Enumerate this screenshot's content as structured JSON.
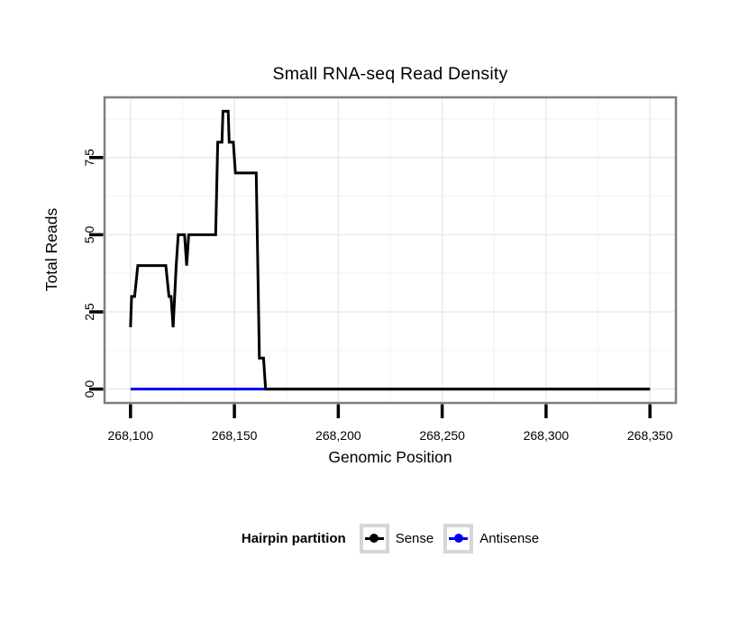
{
  "window": {
    "background": "#ffffff"
  },
  "chart_data": {
    "type": "line",
    "title": "Small RNA-seq Read Density",
    "xlabel": "Genomic Position",
    "ylabel": "Total Reads",
    "x_ticks": {
      "values": [
        268100,
        268150,
        268200,
        268250,
        268300,
        268350
      ],
      "labels": [
        "268,100",
        "268,150",
        "268,200",
        "268,250",
        "268,300",
        "268,350"
      ]
    },
    "y_ticks": {
      "values": [
        0,
        2.5,
        5,
        7.5
      ],
      "labels": [
        "0.0",
        "2.5",
        "5.0",
        "7.5"
      ]
    },
    "x_minor": [
      268125,
      268175,
      268225,
      268275,
      268325
    ],
    "y_minor": [
      1.25,
      3.75,
      6.25,
      8.75
    ],
    "x_range": [
      268087.5,
      268362.5
    ],
    "y_range": [
      -0.45,
      9.45
    ],
    "grid": true,
    "legend": {
      "title": "Hairpin partition",
      "position": "bottom"
    },
    "style": {
      "panel_border": "#7f7f7f",
      "grid_major": "#ebebeb",
      "grid_minor": "#f4f4f4",
      "tick_color": "#000000",
      "axis_text_color": "#000000",
      "key_border": "#d6d6d6",
      "line_width": 3
    },
    "series": [
      {
        "name": "Sense",
        "color": "#000000",
        "points": [
          [
            268100,
            2
          ],
          [
            268100.5,
            3
          ],
          [
            268102,
            3
          ],
          [
            268103.5,
            4
          ],
          [
            268117,
            4
          ],
          [
            268118.5,
            3
          ],
          [
            268119.5,
            3
          ],
          [
            268120.5,
            2
          ],
          [
            268122,
            4
          ],
          [
            268123,
            5
          ],
          [
            268126,
            5
          ],
          [
            268127,
            4
          ],
          [
            268128,
            5
          ],
          [
            268141,
            5
          ],
          [
            268142,
            8
          ],
          [
            268144,
            8
          ],
          [
            268144.5,
            9
          ],
          [
            268147,
            9
          ],
          [
            268147.5,
            8
          ],
          [
            268149.5,
            8
          ],
          [
            268150.5,
            7
          ],
          [
            268160.5,
            7
          ],
          [
            268162,
            1
          ],
          [
            268164,
            1
          ],
          [
            268165,
            0
          ],
          [
            268350,
            0
          ]
        ]
      },
      {
        "name": "Antisense",
        "color": "#0000ee",
        "points": [
          [
            268100,
            0
          ],
          [
            268350,
            0
          ]
        ]
      }
    ]
  }
}
